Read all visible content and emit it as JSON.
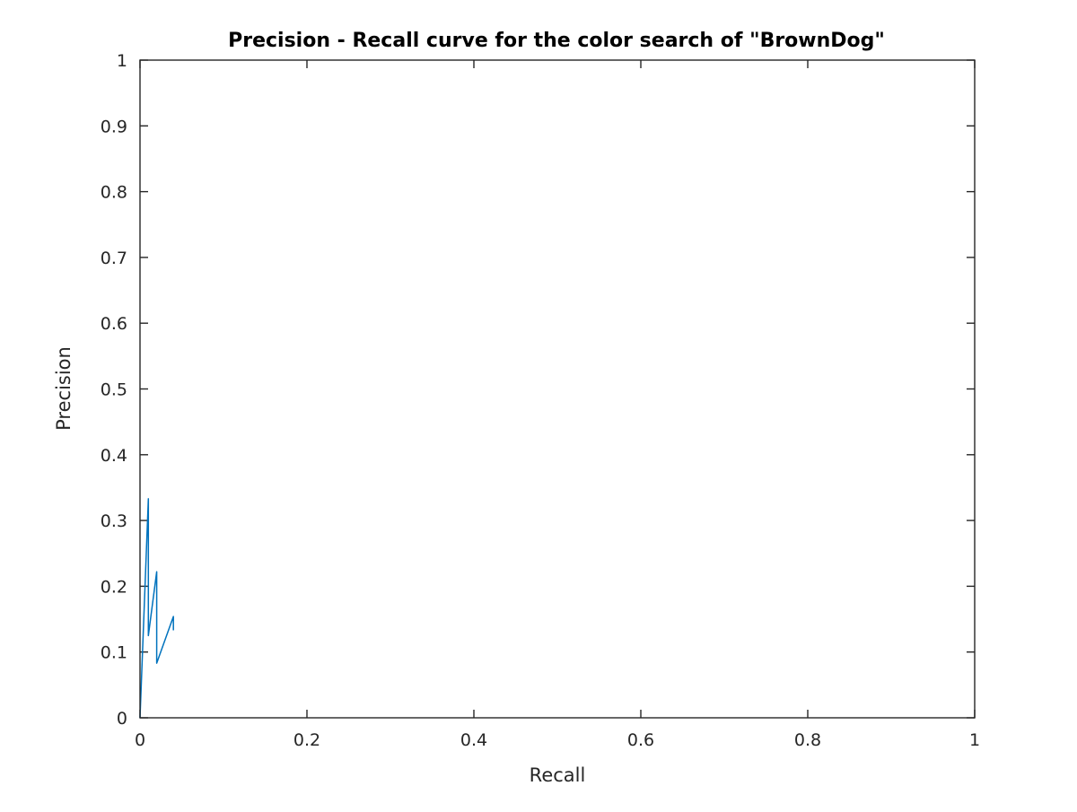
{
  "chart_data": {
    "type": "line",
    "title": "Precision - Recall curve for the color search of \"BrownDog\"",
    "xlabel": "Recall",
    "ylabel": "Precision",
    "xlim": [
      0,
      1
    ],
    "ylim": [
      0,
      1
    ],
    "grid": false,
    "box": true,
    "xticks": [
      0,
      0.2,
      0.4,
      0.6,
      0.8,
      1
    ],
    "xtick_labels": [
      "0",
      "0.2",
      "0.4",
      "0.6",
      "0.8",
      "1"
    ],
    "yticks": [
      0,
      0.1,
      0.2,
      0.3,
      0.4,
      0.5,
      0.6,
      0.7,
      0.8,
      0.9,
      1
    ],
    "ytick_labels": [
      "0",
      "0.1",
      "0.2",
      "0.3",
      "0.4",
      "0.5",
      "0.6",
      "0.7",
      "0.8",
      "0.9",
      "1"
    ],
    "colors": {
      "series": "#0072bd",
      "axes": "#262626",
      "background": "#ffffff"
    },
    "series": [
      {
        "color": "#0072bd",
        "x": [
          0,
          0,
          0.01,
          0.01,
          0.02,
          0.02,
          0.04,
          0.04
        ],
        "y": [
          0,
          0,
          0.333,
          0.125,
          0.222,
          0.083,
          0.154,
          0.133
        ]
      }
    ]
  }
}
